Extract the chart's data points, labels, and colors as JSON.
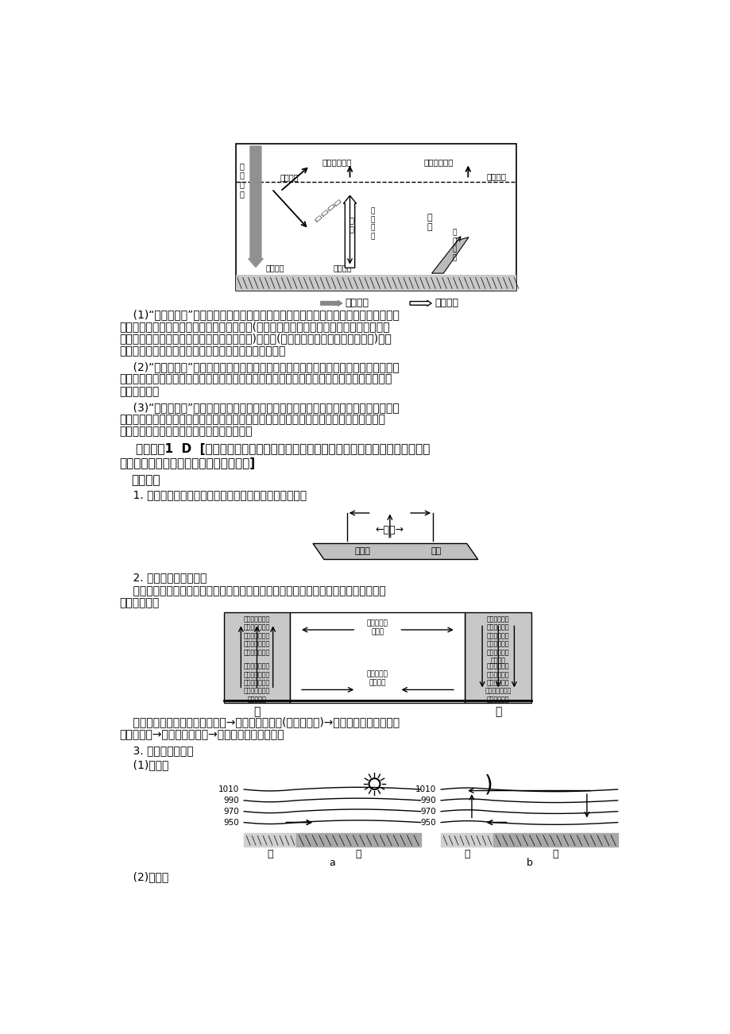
{
  "bg_color": "#ffffff",
  "text_color": "#000000",
  "font_size_body": 10,
  "font_size_heading": 11,
  "para1_line1": "    (1)“太阳暖大地”：太阳辐射能是地球最主要的能量来源。太阳辐射在穿过大气层时，大",
  "para1_line2": "气对太阳辐射起削弱作用，小部分能量被吸收(臭氧和氧原子吸收大部分波长较短的紫外线，",
  "para1_line3": "水汽和二氧化碳吸收一部分波长较长的红外线)和反射(云层和大颗粒尘埃反射作用较强)，大",
  "para1_line4": "部分透过大气射到地面，地面因吸收太阳辐射能而增温。",
  "para2_line1": "    (2)“大地暖大气”：地面增温的同时向外辐射热量。相对于太阳短波辐射，地面辐射是长",
  "para2_line2": "波辐射，除少数透过大气返回宇宙空间外，绝大部分被近地面大气中的水汽和二氧化碳吸收，",
  "para2_line3": "使大气增温。",
  "para3_line1": "    (3)“大气还大地”：大气在增温的同时，也向外辐射热量，既向上辐射，也向下辐射，其",
  "para3_line2": "中大部分射向地面，称为大气逆辐射，大气逆辐射把热量还给地面，在一定程度上补偿了地",
  "para3_line3": "面辐射损失的热量，对地面起到了保温作用。",
  "kaoli_line1": "    考例探究1  D  [露的形成必须有近地面大气降温这一过程，天气晴朗，云量少，大气逆",
  "kaoli_line2": "辐射弱，近地面降温快，易形成雾或露。]",
  "tanjiu2_title": "探究点二",
  "tanjiu2_1": "    1. 由于地面冷热不均而形成的空气环流，称为热力环流。",
  "sec2_title": "    2. 热力环流的形成过程",
  "sec2_text1": "    热力环流是由于近地面冷热不均而形成的一种环流形式，结合等压面示意图对其形成过",
  "sec2_text2": "程分析如下：",
  "summary_line1": "    可简单归纳为：近地面冷热不均→气流的垂直运动(上升或下沉)→近地面和高空在水平面",
  "summary_line2": "上气压差异→大气的水平运动→形成高低空热力环流。",
  "common_title": "    3. 常见的热力珯流",
  "hailufen": "    (1)海陆風",
  "shangufen": "    (2)山谷風"
}
